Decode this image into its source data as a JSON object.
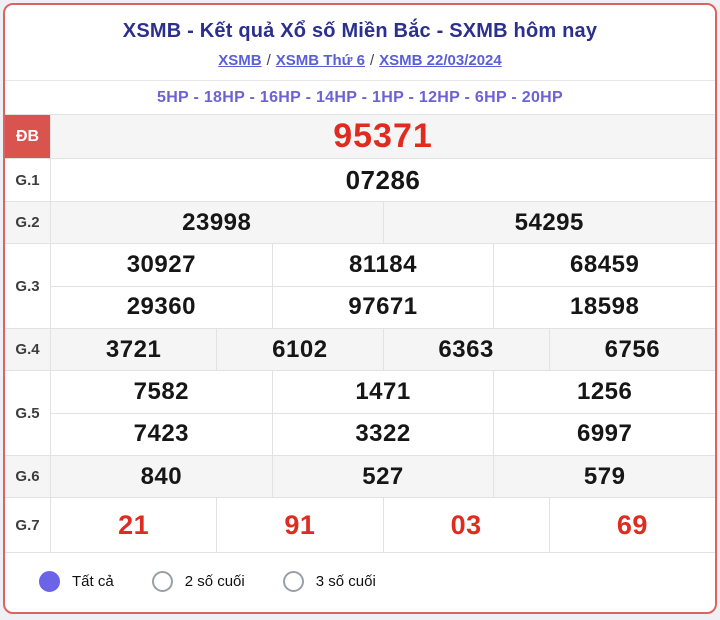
{
  "header": {
    "title": "XSMB - Kết quả Xổ số Miền Bắc - SXMB hôm nay",
    "breadcrumb": {
      "separator": "/",
      "items": [
        "XSMB",
        "XSMB Thứ 6",
        "XSMB 22/03/2024"
      ]
    },
    "provinces": "5HP - 18HP - 16HP - 14HP - 1HP - 12HP - 6HP - 20HP"
  },
  "results": {
    "rows": [
      {
        "label": "ĐB",
        "values": [
          "95371"
        ]
      },
      {
        "label": "G.1",
        "values": [
          "07286"
        ]
      },
      {
        "label": "G.2",
        "values": [
          "23998",
          "54295"
        ]
      },
      {
        "label": "G.3",
        "values": [
          "30927",
          "81184",
          "68459",
          "29360",
          "97671",
          "18598"
        ]
      },
      {
        "label": "G.4",
        "values": [
          "3721",
          "6102",
          "6363",
          "6756"
        ]
      },
      {
        "label": "G.5",
        "values": [
          "7582",
          "1471",
          "1256",
          "7423",
          "3322",
          "6997"
        ]
      },
      {
        "label": "G.6",
        "values": [
          "840",
          "527",
          "579"
        ]
      },
      {
        "label": "G.7",
        "values": [
          "21",
          "91",
          "03",
          "69"
        ]
      }
    ]
  },
  "filters": {
    "options": [
      {
        "label": "Tất cả",
        "selected": true
      },
      {
        "label": "2 số cuối",
        "selected": false
      },
      {
        "label": "3 số cuối",
        "selected": false
      }
    ]
  },
  "colors": {
    "card_border_red": "#dc6361",
    "special_prize_red": "#df2b20",
    "special_label_bg": "#d9534f",
    "title_navy": "#2b2f8e",
    "link_purple": "#5a5fd8",
    "provinces_purple": "#6c63d2",
    "radio_selected_purple": "#6b63e8",
    "alt_row_gray": "#f5f5f6"
  }
}
